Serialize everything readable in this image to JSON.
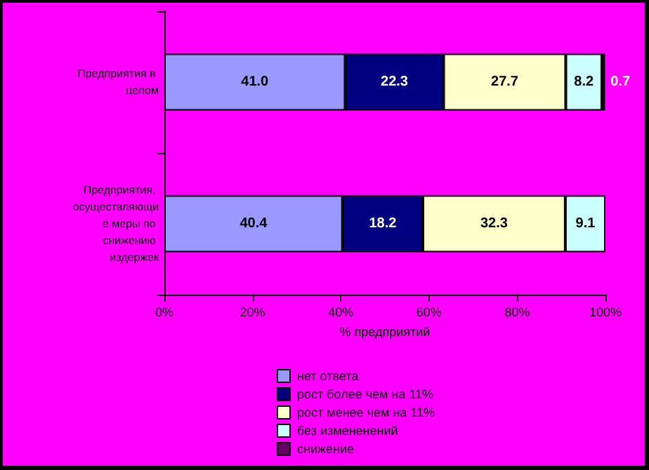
{
  "chart_data": {
    "type": "bar",
    "orientation": "horizontal",
    "stacked": true,
    "xlabel": "% предприятий",
    "categories": [
      "Предприятия в целом",
      "Предприятия, осуществляющие меры по снижению издержек"
    ],
    "series": [
      {
        "name": "нет ответа",
        "color": "#9999ff",
        "values": [
          41.0,
          40.4
        ],
        "value_labels": [
          "41.0",
          "40.4"
        ]
      },
      {
        "name": "рост более чем на 11%",
        "color": "#000080",
        "values": [
          22.3,
          18.2
        ],
        "value_labels": [
          "22.3",
          "18.2"
        ]
      },
      {
        "name": "рост менее чем на 11%",
        "color": "#ffffcc",
        "values": [
          27.7,
          32.3
        ],
        "value_labels": [
          "27.7",
          "32.3"
        ]
      },
      {
        "name": "без измененений",
        "color": "#ccffff",
        "values": [
          8.2,
          9.1
        ],
        "value_labels": [
          "8.2",
          "9.1"
        ]
      },
      {
        "name": "снижение",
        "color": "#660066",
        "values": [
          0.7,
          null
        ],
        "value_labels": [
          "0.7",
          null
        ]
      }
    ],
    "xlim": [
      0,
      100
    ],
    "xticks": [
      {
        "value": 0,
        "label": "0%"
      },
      {
        "value": 20,
        "label": "20%"
      },
      {
        "value": 40,
        "label": "40%"
      },
      {
        "value": 60,
        "label": "60%"
      },
      {
        "value": 80,
        "label": "80%"
      },
      {
        "value": 100,
        "label": "100%"
      }
    ],
    "legend": "bottom",
    "grid": false
  }
}
